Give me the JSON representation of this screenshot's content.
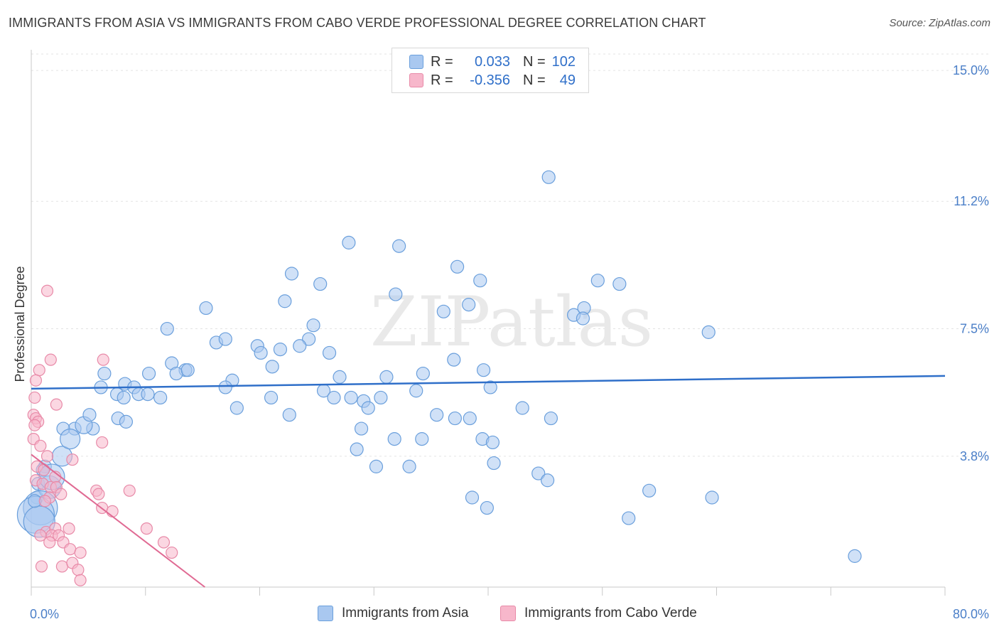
{
  "header": {
    "title": "IMMIGRANTS FROM ASIA VS IMMIGRANTS FROM CABO VERDE PROFESSIONAL DEGREE CORRELATION CHART",
    "source": "Source: ZipAtlas.com"
  },
  "watermark": "ZIPatlas",
  "legend": {
    "rows": [
      {
        "r_label": "R =",
        "r_value": "0.033",
        "n_label": "N =",
        "n_value": "102",
        "color": "#a9c8f0"
      },
      {
        "r_label": "R =",
        "r_value": "-0.356",
        "n_label": "N =",
        "n_value": "49",
        "color": "#f7b7cb"
      }
    ]
  },
  "bottom_legend": [
    {
      "label": "Immigrants from Asia",
      "color": "#a9c8f0"
    },
    {
      "label": "Immigrants from Cabo Verde",
      "color": "#f7b7cb"
    }
  ],
  "chart_data": {
    "type": "scatter",
    "title": "IMMIGRANTS FROM ASIA VS IMMIGRANTS FROM CABO VERDE PROFESSIONAL DEGREE CORRELATION CHART",
    "xlabel": "",
    "ylabel": "Professional Degree",
    "xlim": [
      0,
      80
    ],
    "ylim": [
      0,
      15.6
    ],
    "x_tick_labels": [
      "0.0%",
      "80.0%"
    ],
    "y_ticks": [
      3.8,
      7.5,
      11.2,
      15.0
    ],
    "y_tick_labels": [
      "3.8%",
      "7.5%",
      "11.2%",
      "15.0%"
    ],
    "grid": true,
    "legend_position": "top-center",
    "series": [
      {
        "name": "Immigrants from Asia",
        "color": "#a9c8f0",
        "stroke": "#6a9fdc",
        "trend": {
          "x0": 0,
          "y0": 5.76,
          "x1": 80,
          "y1": 6.13,
          "color": "#2f6fc9"
        },
        "points": [
          [
            45.3,
            11.9,
            1
          ],
          [
            27.8,
            10.0,
            1
          ],
          [
            32.2,
            9.9,
            1
          ],
          [
            37.3,
            9.3,
            1
          ],
          [
            39.3,
            8.9,
            1
          ],
          [
            49.6,
            8.9,
            1
          ],
          [
            51.5,
            8.8,
            1
          ],
          [
            22.8,
            9.1,
            1
          ],
          [
            25.3,
            8.8,
            1
          ],
          [
            31.9,
            8.5,
            1
          ],
          [
            22.2,
            8.3,
            1
          ],
          [
            38.3,
            8.2,
            1
          ],
          [
            15.3,
            8.1,
            1
          ],
          [
            36.1,
            8.0,
            1
          ],
          [
            47.5,
            7.9,
            1
          ],
          [
            48.4,
            8.1,
            1
          ],
          [
            48.3,
            7.8,
            1
          ],
          [
            59.3,
            7.4,
            1
          ],
          [
            11.9,
            7.5,
            1
          ],
          [
            24.7,
            7.6,
            1
          ],
          [
            16.2,
            7.1,
            1
          ],
          [
            24.3,
            7.2,
            1
          ],
          [
            17.0,
            7.2,
            1
          ],
          [
            23.5,
            7.0,
            1
          ],
          [
            19.8,
            7.0,
            1
          ],
          [
            20.1,
            6.8,
            1
          ],
          [
            21.8,
            6.9,
            1
          ],
          [
            26.1,
            6.8,
            1
          ],
          [
            37.0,
            6.6,
            1
          ],
          [
            12.3,
            6.5,
            1
          ],
          [
            21.1,
            6.4,
            1
          ],
          [
            39.6,
            6.3,
            1
          ],
          [
            13.5,
            6.3,
            1
          ],
          [
            10.3,
            6.2,
            1
          ],
          [
            12.7,
            6.2,
            1
          ],
          [
            13.7,
            6.3,
            1
          ],
          [
            6.4,
            6.2,
            1
          ],
          [
            27.0,
            6.1,
            1
          ],
          [
            31.1,
            6.1,
            1
          ],
          [
            34.3,
            6.2,
            1
          ],
          [
            8.2,
            5.9,
            1
          ],
          [
            6.1,
            5.8,
            1
          ],
          [
            17.6,
            6.0,
            1
          ],
          [
            17.0,
            5.8,
            1
          ],
          [
            25.6,
            5.7,
            1
          ],
          [
            33.7,
            5.7,
            1
          ],
          [
            26.5,
            5.5,
            1
          ],
          [
            29.1,
            5.4,
            1
          ],
          [
            40.2,
            5.8,
            1
          ],
          [
            9.0,
            5.8,
            1
          ],
          [
            7.5,
            5.6,
            1
          ],
          [
            8.1,
            5.5,
            1
          ],
          [
            9.4,
            5.6,
            1
          ],
          [
            10.2,
            5.6,
            1
          ],
          [
            21.0,
            5.5,
            1
          ],
          [
            28.0,
            5.5,
            1
          ],
          [
            30.6,
            5.5,
            1
          ],
          [
            11.3,
            5.5,
            1
          ],
          [
            18.0,
            5.2,
            1
          ],
          [
            29.5,
            5.2,
            1
          ],
          [
            35.5,
            5.0,
            1
          ],
          [
            43.0,
            5.2,
            1
          ],
          [
            38.4,
            4.9,
            1
          ],
          [
            37.1,
            4.9,
            1
          ],
          [
            45.5,
            4.9,
            1
          ],
          [
            28.9,
            4.6,
            1
          ],
          [
            22.6,
            5.0,
            1
          ],
          [
            7.6,
            4.9,
            1
          ],
          [
            5.4,
            4.6,
            1
          ],
          [
            8.3,
            4.8,
            1
          ],
          [
            3.8,
            4.6,
            1
          ],
          [
            2.8,
            4.6,
            1
          ],
          [
            31.8,
            4.3,
            1
          ],
          [
            34.2,
            4.3,
            1
          ],
          [
            39.5,
            4.3,
            1
          ],
          [
            40.4,
            4.2,
            1
          ],
          [
            28.5,
            4.0,
            1
          ],
          [
            40.5,
            3.6,
            1
          ],
          [
            30.2,
            3.5,
            1
          ],
          [
            33.1,
            3.5,
            1
          ],
          [
            2.7,
            3.8,
            1
          ],
          [
            1.2,
            3.5,
            1
          ],
          [
            44.4,
            3.3,
            1
          ],
          [
            45.2,
            3.1,
            1
          ],
          [
            38.6,
            2.6,
            1
          ],
          [
            39.9,
            2.3,
            1
          ],
          [
            54.1,
            2.8,
            1
          ],
          [
            52.3,
            2.0,
            1
          ],
          [
            59.6,
            2.6,
            1
          ],
          [
            72.1,
            0.9,
            1
          ],
          [
            1.0,
            3.4,
            1
          ],
          [
            0.6,
            3.0,
            1
          ],
          [
            0.5,
            2.6,
            1
          ],
          [
            1.6,
            2.9,
            1
          ],
          [
            0.8,
            2.3,
            1
          ],
          [
            0.4,
            2.1,
            1
          ],
          [
            0.7,
            1.9,
            1
          ],
          [
            1.8,
            3.2,
            1
          ],
          [
            0.3,
            2.5,
            1
          ],
          [
            3.4,
            4.3,
            1
          ],
          [
            4.6,
            4.7,
            1
          ],
          [
            5.1,
            5.0,
            1
          ]
        ]
      },
      {
        "name": "Immigrants from Cabo Verde",
        "color": "#f7b7cb",
        "stroke": "#e88aa8",
        "trend": {
          "x0": 0,
          "y0": 3.85,
          "x1": 15.2,
          "y1": 0.0,
          "color": "#e06a93"
        },
        "points": [
          [
            1.4,
            8.6,
            1
          ],
          [
            1.7,
            6.6,
            1
          ],
          [
            0.7,
            6.3,
            1
          ],
          [
            6.3,
            6.6,
            1
          ],
          [
            0.4,
            6.0,
            1
          ],
          [
            0.3,
            5.5,
            1
          ],
          [
            2.2,
            5.3,
            1
          ],
          [
            0.2,
            5.0,
            1
          ],
          [
            0.4,
            4.9,
            1
          ],
          [
            0.6,
            4.8,
            1
          ],
          [
            0.3,
            4.7,
            1
          ],
          [
            6.2,
            4.2,
            1
          ],
          [
            0.2,
            4.3,
            1
          ],
          [
            0.8,
            4.1,
            1
          ],
          [
            1.4,
            3.8,
            1
          ],
          [
            3.6,
            3.7,
            1
          ],
          [
            0.5,
            3.5,
            1
          ],
          [
            1.1,
            3.4,
            1
          ],
          [
            2.1,
            3.2,
            1
          ],
          [
            0.4,
            3.1,
            1
          ],
          [
            1.0,
            3.0,
            1
          ],
          [
            1.7,
            2.9,
            1
          ],
          [
            2.2,
            2.9,
            1
          ],
          [
            5.7,
            2.8,
            1
          ],
          [
            5.9,
            2.7,
            1
          ],
          [
            8.6,
            2.8,
            1
          ],
          [
            2.6,
            2.7,
            1
          ],
          [
            1.6,
            2.6,
            1
          ],
          [
            1.2,
            2.5,
            1
          ],
          [
            6.2,
            2.3,
            1
          ],
          [
            7.1,
            2.2,
            1
          ],
          [
            1.3,
            1.6,
            1
          ],
          [
            2.1,
            1.7,
            1
          ],
          [
            3.3,
            1.7,
            1
          ],
          [
            1.8,
            1.5,
            1
          ],
          [
            2.4,
            1.5,
            1
          ],
          [
            1.6,
            1.3,
            1
          ],
          [
            2.8,
            1.3,
            1
          ],
          [
            3.4,
            1.1,
            1
          ],
          [
            10.1,
            1.7,
            1
          ],
          [
            11.6,
            1.3,
            1
          ],
          [
            12.3,
            1.0,
            1
          ],
          [
            4.3,
            1.0,
            1
          ],
          [
            0.9,
            0.6,
            1
          ],
          [
            2.7,
            0.6,
            1
          ],
          [
            3.6,
            0.7,
            1
          ],
          [
            4.1,
            0.5,
            1
          ],
          [
            4.3,
            0.2,
            1
          ],
          [
            0.8,
            1.5,
            1
          ]
        ]
      }
    ]
  }
}
